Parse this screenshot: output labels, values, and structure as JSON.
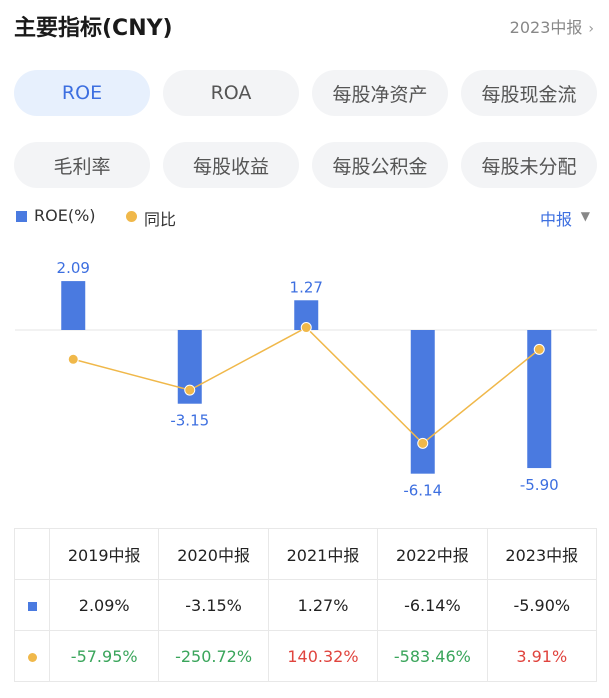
{
  "header": {
    "title": "主要指标(CNY)",
    "period_label": "2023中报",
    "period_chevron": "›"
  },
  "tabs": [
    {
      "label": "ROE",
      "active": true
    },
    {
      "label": "ROA",
      "active": false
    },
    {
      "label": "每股净资产",
      "active": false
    },
    {
      "label": "每股现金流",
      "active": false
    },
    {
      "label": "毛利率",
      "active": false
    },
    {
      "label": "每股收益",
      "active": false
    },
    {
      "label": "每股公积金",
      "active": false
    },
    {
      "label": "每股未分配",
      "active": false
    }
  ],
  "legend": {
    "series1": "ROE(%)",
    "series2": "同比",
    "period_select": "中报",
    "caret": "▼"
  },
  "colors": {
    "bar": "#4a7ae0",
    "line": "#f0b84a",
    "positive": "#e0443e",
    "negative": "#3aa55b",
    "accent": "#3d6fe0"
  },
  "chart_data": {
    "type": "bar",
    "categories": [
      "2019中报",
      "2020中报",
      "2021中报",
      "2022中报",
      "2023中报"
    ],
    "series": [
      {
        "name": "ROE(%)",
        "type": "bar",
        "values": [
          2.09,
          -3.15,
          1.27,
          -6.14,
          -5.9
        ],
        "labels": [
          "2.09",
          "-3.15",
          "1.27",
          "-6.14",
          "-5.90"
        ]
      },
      {
        "name": "同比",
        "type": "line",
        "values": [
          -57.95,
          -250.72,
          140.32,
          -583.46,
          3.91
        ]
      }
    ]
  },
  "table": {
    "headers": [
      "2019中报",
      "2020中报",
      "2021中报",
      "2022中报",
      "2023中报"
    ],
    "row_roe": [
      "2.09%",
      "-3.15%",
      "1.27%",
      "-6.14%",
      "-5.90%"
    ],
    "row_yoy": [
      "-57.95%",
      "-250.72%",
      "140.32%",
      "-583.46%",
      "3.91%"
    ]
  }
}
